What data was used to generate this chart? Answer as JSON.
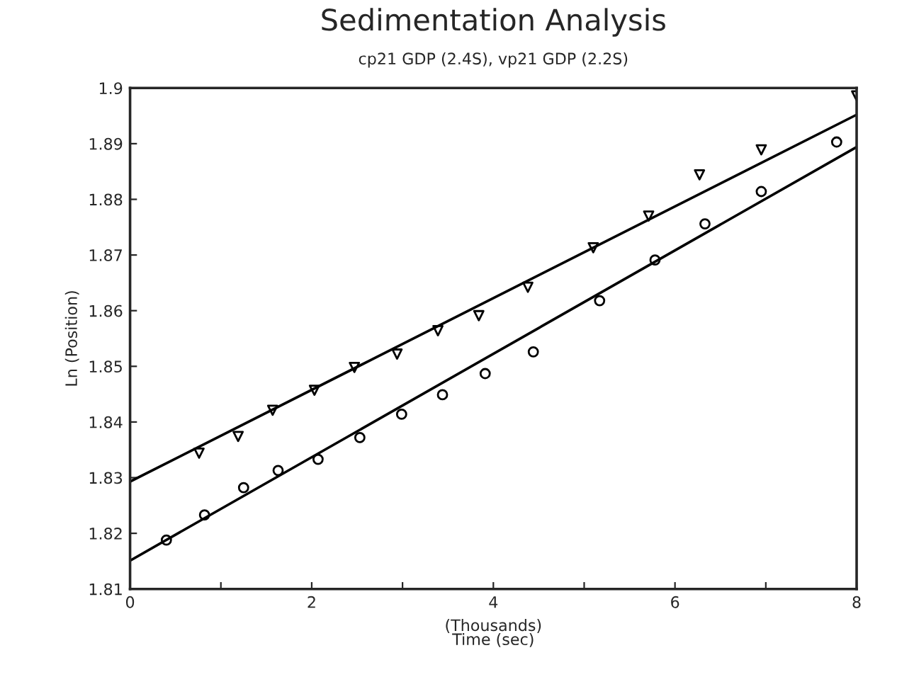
{
  "chart_data": {
    "type": "scatter",
    "title": "Sedimentation Analysis",
    "subtitle": "cp21 GDP (2.4S), vp21 GDP (2.2S)",
    "xlabel": "(Thousands)\nTime (sec)",
    "ylabel": "Ln (Position)",
    "series": [
      {
        "color": "#000000",
        "marker": "triangle",
        "x": [
          0.76,
          1.19,
          1.57,
          2.03,
          2.47,
          2.94,
          3.39,
          3.84,
          4.38,
          5.1,
          5.71,
          6.27,
          6.95,
          8.0
        ],
        "values": [
          1.8344,
          1.8374,
          1.8421,
          1.8457,
          1.8498,
          1.8522,
          1.8564,
          1.8591,
          1.8642,
          1.8713,
          1.877,
          1.8844,
          1.8889,
          1.8986
        ]
      },
      {
        "color": "#000000",
        "marker": "circle",
        "x": [
          0.4,
          0.82,
          1.25,
          1.63,
          2.07,
          2.53,
          2.99,
          3.44,
          3.91,
          4.44,
          5.17,
          5.78,
          6.33,
          6.95,
          7.78
        ],
        "values": [
          1.8188,
          1.8233,
          1.8282,
          1.8313,
          1.8333,
          1.8372,
          1.8414,
          1.8449,
          1.8487,
          1.8526,
          1.8618,
          1.8691,
          1.8756,
          1.8814,
          1.8903
        ]
      },
      {
        "type": "line",
        "color": "#000000",
        "x": [
          0,
          8
        ],
        "values": [
          1.8293,
          1.8952
        ]
      },
      {
        "type": "line",
        "color": "#000000",
        "x": [
          0,
          8
        ],
        "values": [
          1.8151,
          1.8894
        ]
      }
    ],
    "xlim": [
      0,
      8
    ],
    "xticks": [
      0,
      {
        "value": 1,
        "label": null
      },
      2,
      {
        "value": 3,
        "label": null
      },
      4,
      {
        "value": 5,
        "label": null
      },
      6,
      {
        "value": 7,
        "label": null
      },
      8
    ],
    "ylim": [
      1.81,
      1.9
    ],
    "yticks": [
      1.81,
      1.82,
      1.83,
      1.84,
      1.85,
      1.86,
      1.87,
      1.88,
      1.89,
      1.9
    ],
    "grid": false,
    "legend": false
  }
}
